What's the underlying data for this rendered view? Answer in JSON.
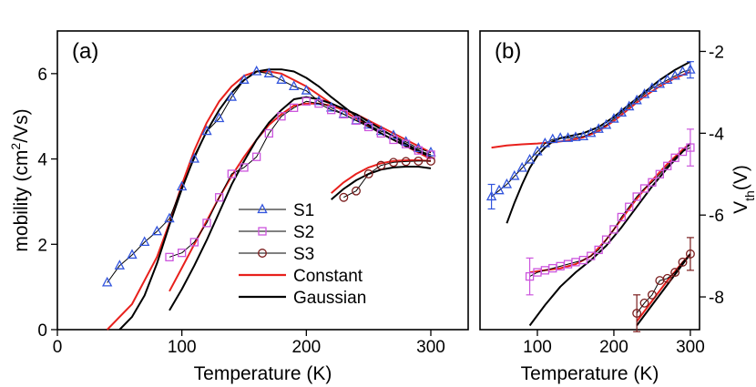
{
  "chart_data": [
    {
      "type": "scatter",
      "panel_label": "(a)",
      "xlabel": "Temperature (K)",
      "ylabel": "mobility (cm",
      "ylabel_sup": "2",
      "ylabel_tail": "/Vs)",
      "xlim": [
        0,
        330
      ],
      "ylim": [
        0,
        7
      ],
      "xticks": [
        0,
        100,
        200,
        300
      ],
      "yticks": [
        0,
        2,
        4,
        6
      ],
      "colors": {
        "S1": "#3355dd",
        "S2": "#cc55dd",
        "S3": "#7a1c1c",
        "Constant": "#e8201c",
        "Gaussian": "#000000"
      },
      "legend": [
        {
          "label": "S1",
          "marker": "triangle"
        },
        {
          "label": "S2",
          "marker": "square"
        },
        {
          "label": "S3",
          "marker": "circle"
        },
        {
          "label": "Constant",
          "marker": "line"
        },
        {
          "label": "Gaussian",
          "marker": "line"
        }
      ],
      "series": [
        {
          "name": "S1",
          "marker": "triangle",
          "connected": true,
          "x": [
            40,
            50,
            60,
            70,
            80,
            90,
            100,
            110,
            120,
            130,
            140,
            150,
            160,
            170,
            180,
            190,
            200,
            210,
            220,
            230,
            240,
            250,
            260,
            270,
            280,
            290,
            300
          ],
          "y": [
            1.1,
            1.5,
            1.75,
            2.05,
            2.3,
            2.6,
            3.35,
            4.0,
            4.65,
            4.95,
            5.45,
            5.85,
            6.05,
            6.0,
            5.85,
            5.7,
            5.6,
            5.35,
            5.2,
            5.05,
            4.9,
            4.8,
            4.65,
            4.55,
            4.4,
            4.25,
            4.15
          ]
        },
        {
          "name": "S2",
          "marker": "square",
          "connected": true,
          "x": [
            90,
            100,
            110,
            120,
            130,
            140,
            150,
            160,
            170,
            180,
            190,
            200,
            210,
            220,
            230,
            240,
            250,
            260,
            270,
            280,
            290,
            300
          ],
          "y": [
            1.7,
            1.8,
            2.05,
            2.5,
            3.1,
            3.65,
            3.8,
            4.05,
            4.6,
            5.0,
            5.2,
            5.35,
            5.3,
            5.15,
            5.05,
            4.9,
            4.75,
            4.6,
            4.45,
            4.35,
            4.2,
            4.1
          ]
        },
        {
          "name": "S3",
          "marker": "circle",
          "connected": true,
          "x": [
            230,
            240,
            250,
            260,
            270,
            280,
            290,
            300
          ],
          "y": [
            3.1,
            3.25,
            3.65,
            3.85,
            3.92,
            3.94,
            3.95,
            3.95
          ]
        },
        {
          "name": "S1 Constant",
          "legend": "Constant",
          "marker": "none",
          "connected": true,
          "x": [
            40,
            60,
            80,
            90,
            100,
            110,
            120,
            130,
            140,
            150,
            160,
            170,
            180,
            190,
            200,
            210,
            220,
            240,
            260,
            280,
            300
          ],
          "y": [
            0.0,
            0.6,
            1.7,
            2.5,
            3.4,
            4.2,
            4.85,
            5.35,
            5.7,
            5.95,
            6.05,
            6.05,
            6.0,
            5.85,
            5.7,
            5.5,
            5.3,
            4.95,
            4.6,
            4.3,
            4.0
          ]
        },
        {
          "name": "S1 Gaussian",
          "legend": "Gaussian",
          "marker": "none",
          "connected": true,
          "x": [
            50,
            60,
            70,
            80,
            90,
            100,
            110,
            120,
            130,
            140,
            150,
            160,
            170,
            180,
            190,
            200,
            210,
            220,
            240,
            260,
            280,
            300
          ],
          "y": [
            0.0,
            0.3,
            0.8,
            1.55,
            2.45,
            3.3,
            4.05,
            4.65,
            5.15,
            5.55,
            5.85,
            6.05,
            6.1,
            6.1,
            6.05,
            5.9,
            5.7,
            5.45,
            5.0,
            4.6,
            4.3,
            4.05
          ]
        },
        {
          "name": "S2 Constant",
          "legend": "Constant",
          "marker": "none",
          "connected": true,
          "x": [
            90,
            100,
            110,
            120,
            130,
            140,
            150,
            160,
            170,
            180,
            190,
            200,
            210,
            220,
            240,
            260,
            280,
            300
          ],
          "y": [
            0.9,
            1.45,
            2.0,
            2.55,
            3.1,
            3.6,
            4.05,
            4.45,
            4.8,
            5.05,
            5.25,
            5.3,
            5.3,
            5.25,
            5.05,
            4.75,
            4.45,
            4.15
          ]
        },
        {
          "name": "S2 Gaussian",
          "legend": "Gaussian",
          "marker": "none",
          "connected": true,
          "x": [
            90,
            100,
            110,
            120,
            130,
            140,
            150,
            160,
            170,
            180,
            190,
            200,
            210,
            220,
            240,
            260,
            280,
            300
          ],
          "y": [
            0.45,
            0.95,
            1.5,
            2.1,
            2.75,
            3.4,
            3.95,
            4.45,
            4.85,
            5.15,
            5.4,
            5.45,
            5.4,
            5.3,
            5.05,
            4.7,
            4.35,
            4.05
          ]
        },
        {
          "name": "S3 Constant",
          "legend": "Constant",
          "marker": "none",
          "connected": true,
          "x": [
            220,
            230,
            240,
            250,
            260,
            270,
            280,
            290,
            300
          ],
          "y": [
            3.2,
            3.45,
            3.65,
            3.8,
            3.9,
            3.95,
            3.97,
            3.97,
            3.95
          ]
        },
        {
          "name": "S3 Gaussian",
          "legend": "Gaussian",
          "marker": "none",
          "connected": true,
          "x": [
            220,
            230,
            240,
            250,
            260,
            270,
            280,
            290,
            300
          ],
          "y": [
            3.05,
            3.3,
            3.5,
            3.65,
            3.75,
            3.8,
            3.82,
            3.82,
            3.78
          ]
        }
      ]
    },
    {
      "type": "scatter",
      "panel_label": "(b)",
      "xlabel": "Temperature (K)",
      "ylabel": "V",
      "ylabel_sub": "th",
      "ylabel_tail": "(V)",
      "y_axis_side": "right",
      "xlim": [
        25,
        312
      ],
      "ylim": [
        -8.8,
        -1.5
      ],
      "xticks": [
        100,
        200,
        300
      ],
      "yticks": [
        -8,
        -6,
        -4,
        -2
      ],
      "colors": {
        "S1": "#3355dd",
        "S2": "#cc55dd",
        "S3": "#7a1c1c",
        "Constant": "#e8201c",
        "Gaussian": "#000000"
      },
      "series": [
        {
          "name": "S1",
          "marker": "triangle",
          "connected": true,
          "x": [
            40,
            50,
            60,
            70,
            80,
            90,
            100,
            110,
            120,
            130,
            140,
            150,
            160,
            170,
            180,
            190,
            200,
            210,
            220,
            230,
            240,
            250,
            260,
            270,
            280,
            290,
            300
          ],
          "y": [
            -5.55,
            -5.4,
            -5.25,
            -5.05,
            -4.85,
            -4.65,
            -4.45,
            -4.25,
            -4.15,
            -4.12,
            -4.12,
            -4.1,
            -4.08,
            -4.0,
            -3.9,
            -3.8,
            -3.65,
            -3.5,
            -3.35,
            -3.2,
            -3.05,
            -2.9,
            -2.8,
            -2.7,
            -2.6,
            -2.5,
            -2.45
          ],
          "error_bars": [
            {
              "x": 40,
              "y": -5.55,
              "err": 0.3
            },
            {
              "x": 300,
              "y": -2.45,
              "err": 0.2
            }
          ]
        },
        {
          "name": "S2",
          "marker": "square",
          "connected": true,
          "x": [
            90,
            100,
            110,
            120,
            130,
            140,
            150,
            160,
            170,
            180,
            190,
            200,
            210,
            220,
            230,
            240,
            250,
            260,
            270,
            280,
            290,
            300
          ],
          "y": [
            -7.5,
            -7.4,
            -7.35,
            -7.3,
            -7.25,
            -7.2,
            -7.15,
            -7.1,
            -7.0,
            -6.85,
            -6.6,
            -6.35,
            -6.05,
            -5.8,
            -5.55,
            -5.35,
            -5.2,
            -5.0,
            -4.8,
            -4.6,
            -4.45,
            -4.35
          ],
          "error_bars": [
            {
              "x": 90,
              "y": -7.5,
              "err": 0.45
            },
            {
              "x": 300,
              "y": -4.35,
              "err": 0.45
            }
          ]
        },
        {
          "name": "S3",
          "marker": "circle",
          "connected": true,
          "x": [
            230,
            240,
            250,
            260,
            270,
            280,
            290,
            300
          ],
          "y": [
            -8.4,
            -8.15,
            -7.95,
            -7.6,
            -7.55,
            -7.4,
            -7.15,
            -6.95
          ],
          "error_bars": [
            {
              "x": 230,
              "y": -8.4,
              "err": 0.45
            },
            {
              "x": 300,
              "y": -6.95,
              "err": 0.4
            }
          ]
        },
        {
          "name": "S1 Constant",
          "legend": "Constant",
          "marker": "none",
          "connected": true,
          "x": [
            40,
            60,
            80,
            100,
            120,
            140,
            160,
            180,
            200,
            220,
            240,
            260,
            280,
            300
          ],
          "y": [
            -4.35,
            -4.3,
            -4.27,
            -4.25,
            -4.22,
            -4.18,
            -4.1,
            -3.95,
            -3.7,
            -3.4,
            -3.1,
            -2.85,
            -2.65,
            -2.5
          ]
        },
        {
          "name": "S1 Gaussian",
          "legend": "Gaussian",
          "marker": "none",
          "connected": true,
          "x": [
            60,
            70,
            80,
            90,
            100,
            110,
            120,
            130,
            140,
            160,
            180,
            200,
            220,
            240,
            260,
            280,
            300
          ],
          "y": [
            -6.2,
            -5.7,
            -5.25,
            -4.85,
            -4.55,
            -4.35,
            -4.2,
            -4.12,
            -4.08,
            -4.0,
            -3.85,
            -3.6,
            -3.3,
            -3.0,
            -2.7,
            -2.45,
            -2.25
          ]
        },
        {
          "name": "S2 Constant",
          "legend": "Constant",
          "marker": "none",
          "connected": true,
          "x": [
            90,
            110,
            130,
            150,
            170,
            190,
            210,
            230,
            250,
            270,
            290,
            300
          ],
          "y": [
            -7.4,
            -7.35,
            -7.3,
            -7.2,
            -7.0,
            -6.6,
            -6.1,
            -5.6,
            -5.15,
            -4.75,
            -4.4,
            -4.25
          ]
        },
        {
          "name": "S2 Gaussian",
          "legend": "Gaussian",
          "marker": "none",
          "connected": true,
          "x": [
            90,
            110,
            130,
            150,
            170,
            190,
            210,
            230,
            250,
            270,
            290,
            300
          ],
          "y": [
            -8.7,
            -8.2,
            -7.75,
            -7.4,
            -7.1,
            -6.75,
            -6.3,
            -5.8,
            -5.3,
            -4.85,
            -4.45,
            -4.25
          ]
        },
        {
          "name": "S3 Constant",
          "legend": "Constant",
          "marker": "none",
          "connected": true,
          "x": [
            230,
            250,
            270,
            290,
            300
          ],
          "y": [
            -8.6,
            -8.1,
            -7.6,
            -7.15,
            -6.95
          ]
        },
        {
          "name": "S3 Gaussian",
          "legend": "Gaussian",
          "marker": "none",
          "connected": true,
          "x": [
            230,
            250,
            270,
            290,
            300
          ],
          "y": [
            -8.7,
            -8.2,
            -7.7,
            -7.2,
            -6.95
          ]
        }
      ]
    }
  ]
}
